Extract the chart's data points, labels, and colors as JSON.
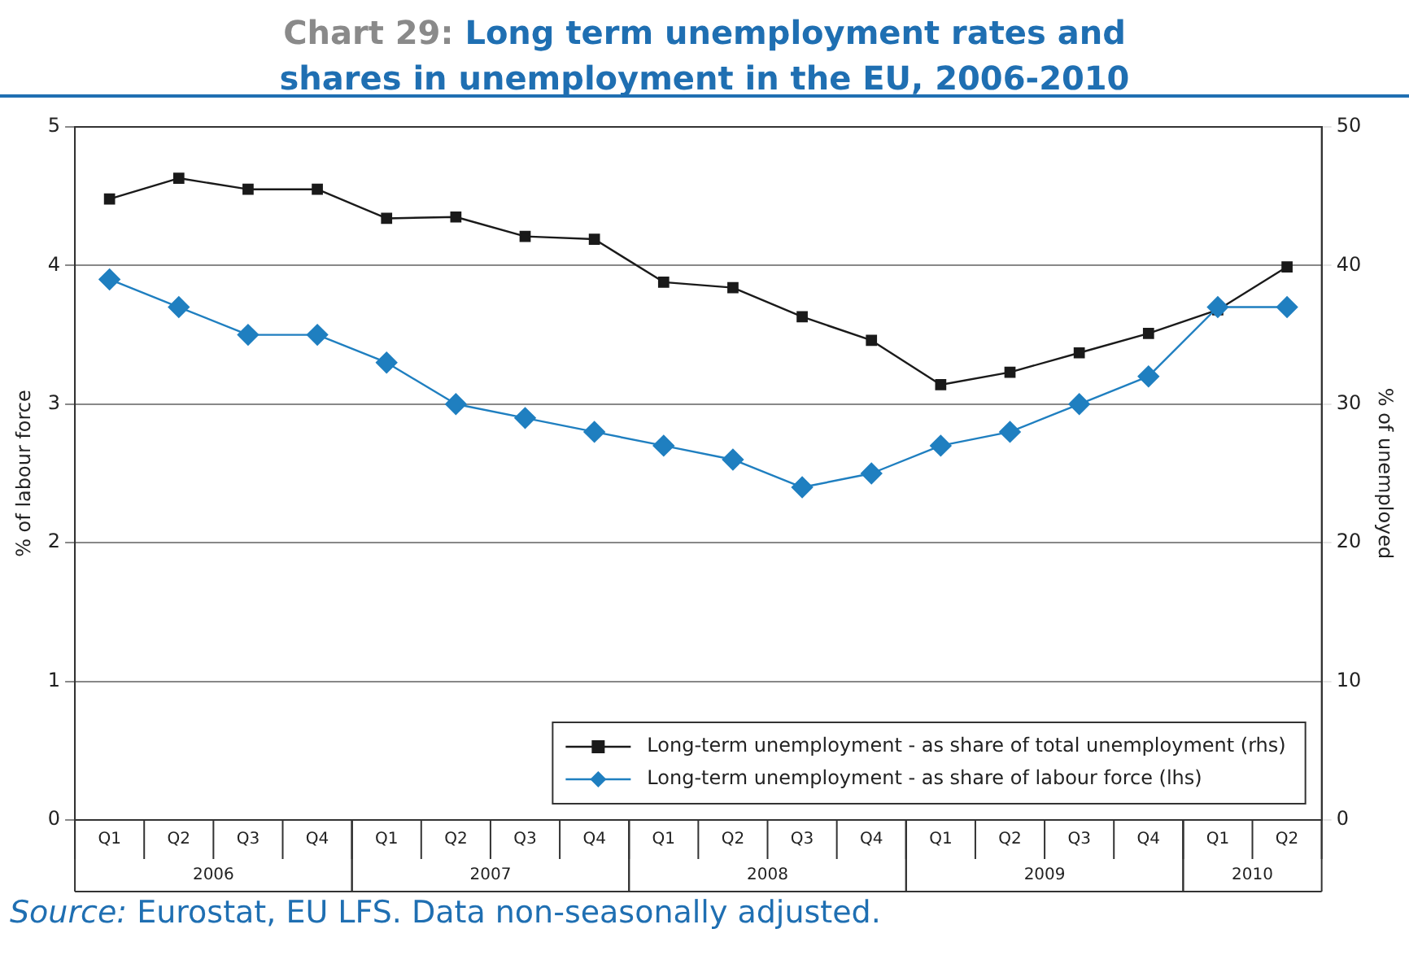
{
  "chart_data": {
    "type": "line",
    "title": "Chart 29: Long term unemployment rates and shares in unemployment in the EU, 2006-2010",
    "ylabel": "% of labour force",
    "y2label": "% of unemployed",
    "categories": [
      "Q1",
      "Q2",
      "Q3",
      "Q4",
      "Q1",
      "Q2",
      "Q3",
      "Q4",
      "Q1",
      "Q2",
      "Q3",
      "Q4",
      "Q1",
      "Q2",
      "Q3",
      "Q4",
      "Q1",
      "Q2"
    ],
    "series": [
      {
        "name": "Long-term unemployment - as share of total unemployment (rhs)",
        "color": "#1a1a1a",
        "axis": "y2",
        "marker": "square",
        "values": [
          44.8,
          46.3,
          45.5,
          45.5,
          43.4,
          43.5,
          42.1,
          41.9,
          38.8,
          38.4,
          36.3,
          34.6,
          31.4,
          32.3,
          33.7,
          35.1,
          36.8,
          39.9
        ]
      },
      {
        "name": "Long-term unemployment - as share of labour force (lhs)",
        "color": "#1f7fc0",
        "axis": "y",
        "marker": "diamond",
        "values": [
          3.9,
          3.7,
          3.5,
          3.5,
          3.3,
          3.0,
          2.9,
          2.8,
          2.7,
          2.6,
          2.4,
          2.5,
          2.7,
          2.8,
          3.0,
          3.2,
          3.7,
          3.7
        ]
      }
    ],
    "ylim": [
      0,
      5
    ],
    "yticks": [
      0,
      1,
      2,
      3,
      4,
      5
    ],
    "y2lim": [
      0,
      50
    ],
    "y2ticks": [
      0,
      10,
      20,
      30,
      40,
      50
    ],
    "grid": "y",
    "legend": "bottom right",
    "line_style": "solid",
    "annotations": [
      "2006",
      "2007",
      "2008",
      "2009",
      "2010",
      "Source: Eurostat, EU LFS. Data non-seasonally adjusted."
    ]
  }
}
